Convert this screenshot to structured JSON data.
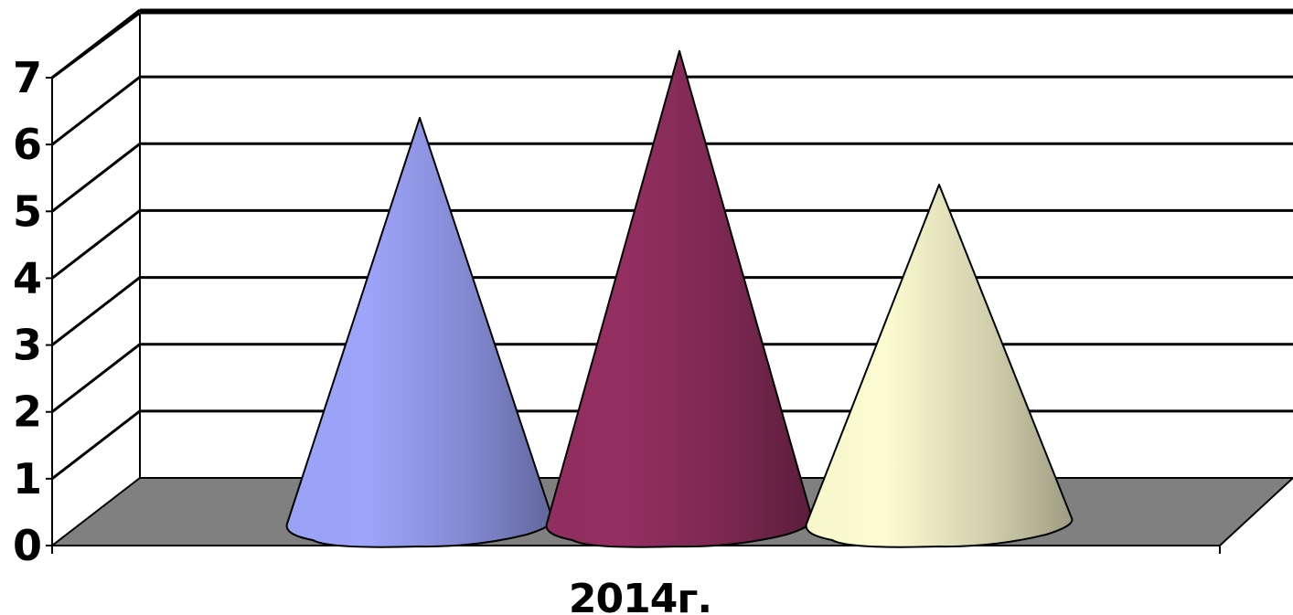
{
  "chart_data": {
    "type": "bar",
    "style": "3d-cone",
    "categories": [
      "2014г."
    ],
    "series": [
      {
        "values": [
          6.4
        ],
        "color": "#9da5fb"
      },
      {
        "values": [
          7.4
        ],
        "color": "#932f61"
      },
      {
        "values": [
          5.4
        ],
        "color": "#fdfbd0"
      }
    ],
    "ylim": [
      0,
      7
    ],
    "yticks": [
      "0",
      "1",
      "2",
      "3",
      "4",
      "5",
      "6",
      "7"
    ],
    "grid": true,
    "floor_color": "#808080"
  }
}
